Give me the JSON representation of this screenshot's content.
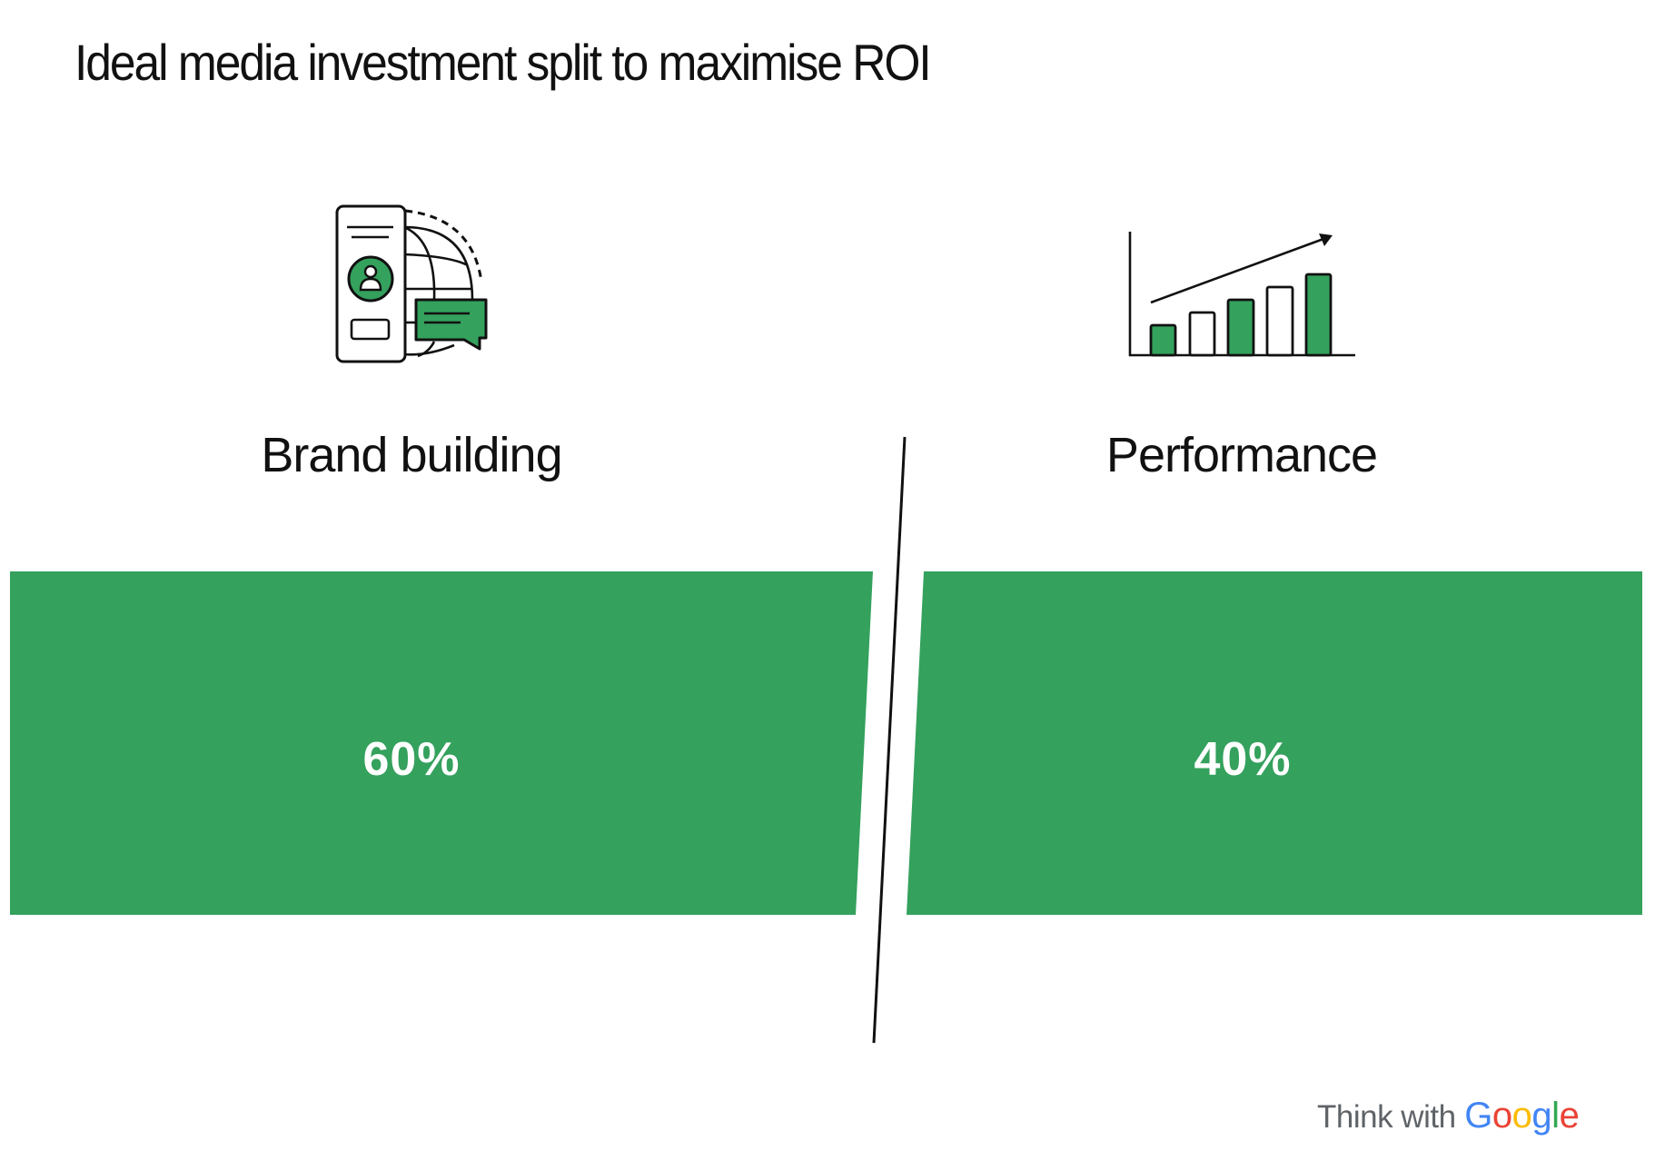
{
  "chart_data": {
    "type": "bar",
    "title": "Ideal media investment split to maximise ROI",
    "categories": [
      "Brand building",
      "Performance"
    ],
    "values": [
      60,
      40
    ],
    "value_labels": [
      "60%",
      "40%"
    ],
    "unit": "%",
    "xlabel": "",
    "ylabel": "",
    "grid": false,
    "legend": "none",
    "colors": {
      "bar": "#34A15D",
      "label_text": "#FFFFFF",
      "divider": "#111111"
    }
  },
  "header": {
    "title": "Ideal media investment split to maximise ROI"
  },
  "segments": [
    {
      "label": "Brand building",
      "value_label": "60%",
      "icon": "phone-globe-chat-icon"
    },
    {
      "label": "Performance",
      "value_label": "40%",
      "icon": "growth-bar-chart-icon"
    }
  ],
  "footer": {
    "prefix": "Think with",
    "brand_letters": [
      {
        "ch": "G",
        "color": "#4285F4"
      },
      {
        "ch": "o",
        "color": "#EA4335"
      },
      {
        "ch": "o",
        "color": "#FBBC05"
      },
      {
        "ch": "g",
        "color": "#4285F4"
      },
      {
        "ch": "l",
        "color": "#34A853"
      },
      {
        "ch": "e",
        "color": "#EA4335"
      }
    ]
  }
}
